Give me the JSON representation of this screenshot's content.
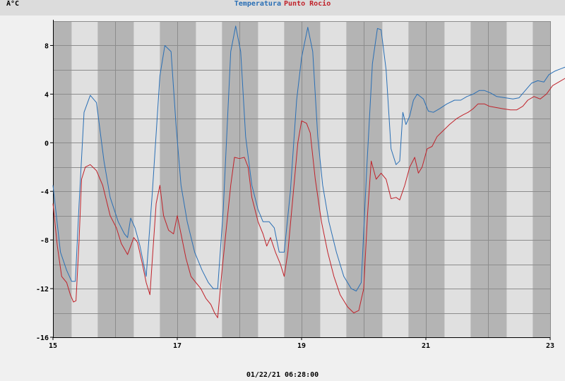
{
  "unit_label": "Â°C",
  "legend": [
    {
      "label": "Temperatura",
      "color": "#2a6fb5"
    },
    {
      "label": "Punto Rocio",
      "color": "#c0222a"
    }
  ],
  "timestamp": "01/22/21 06:28:00",
  "colors": {
    "plot_bg": "#e0e0e0",
    "night_band": "#b4b4b4",
    "grid": "#8c8c8c"
  },
  "chart_data": {
    "type": "line",
    "title": "",
    "xlabel": "",
    "ylabel": "Â°C",
    "xlim": [
      15,
      23
    ],
    "ylim": [
      -16,
      10
    ],
    "x_ticks": [
      15,
      17,
      19,
      21,
      23
    ],
    "y_ticks": [
      -16,
      -12,
      -8,
      -4,
      0,
      4,
      8
    ],
    "grid": true,
    "night_bands": [
      [
        15.0,
        15.3
      ],
      [
        15.72,
        16.3
      ],
      [
        16.72,
        17.3
      ],
      [
        17.72,
        18.3
      ],
      [
        18.72,
        19.3
      ],
      [
        19.72,
        20.3
      ],
      [
        20.72,
        21.3
      ],
      [
        21.72,
        22.3
      ],
      [
        22.72,
        23.0
      ]
    ],
    "series": [
      {
        "name": "Temperatura",
        "color": "#2a6fb5",
        "points": [
          [
            15.0,
            -3.5
          ],
          [
            15.12,
            -9.0
          ],
          [
            15.22,
            -10.5
          ],
          [
            15.3,
            -11.4
          ],
          [
            15.36,
            -11.4
          ],
          [
            15.42,
            -5.0
          ],
          [
            15.5,
            2.5
          ],
          [
            15.6,
            3.9
          ],
          [
            15.7,
            3.3
          ],
          [
            15.82,
            -1.5
          ],
          [
            15.92,
            -4.5
          ],
          [
            16.05,
            -6.5
          ],
          [
            16.15,
            -7.5
          ],
          [
            16.2,
            -7.8
          ],
          [
            16.25,
            -6.2
          ],
          [
            16.32,
            -7.0
          ],
          [
            16.4,
            -8.5
          ],
          [
            16.5,
            -11.0
          ],
          [
            16.6,
            -4.0
          ],
          [
            16.72,
            5.5
          ],
          [
            16.8,
            8.0
          ],
          [
            16.9,
            7.5
          ],
          [
            16.98,
            1.5
          ],
          [
            17.06,
            -3.5
          ],
          [
            17.16,
            -6.5
          ],
          [
            17.28,
            -9.0
          ],
          [
            17.4,
            -10.5
          ],
          [
            17.5,
            -11.5
          ],
          [
            17.58,
            -12.0
          ],
          [
            17.65,
            -12.0
          ],
          [
            17.74,
            -5.5
          ],
          [
            17.86,
            7.5
          ],
          [
            17.94,
            9.6
          ],
          [
            18.02,
            7.5
          ],
          [
            18.1,
            0.5
          ],
          [
            18.2,
            -3.5
          ],
          [
            18.3,
            -5.5
          ],
          [
            18.38,
            -6.5
          ],
          [
            18.48,
            -6.5
          ],
          [
            18.56,
            -7.0
          ],
          [
            18.64,
            -9.0
          ],
          [
            18.72,
            -9.0
          ],
          [
            18.82,
            -4.0
          ],
          [
            18.92,
            3.5
          ],
          [
            19.0,
            7.0
          ],
          [
            19.1,
            9.5
          ],
          [
            19.18,
            7.5
          ],
          [
            19.26,
            0.5
          ],
          [
            19.34,
            -3.5
          ],
          [
            19.44,
            -6.5
          ],
          [
            19.56,
            -9.0
          ],
          [
            19.68,
            -11.0
          ],
          [
            19.8,
            -12.0
          ],
          [
            19.88,
            -12.2
          ],
          [
            19.96,
            -11.5
          ],
          [
            20.05,
            -2.0
          ],
          [
            20.14,
            6.5
          ],
          [
            20.22,
            9.4
          ],
          [
            20.28,
            9.3
          ],
          [
            20.36,
            6.0
          ],
          [
            20.44,
            -0.5
          ],
          [
            20.52,
            -1.8
          ],
          [
            20.58,
            -1.5
          ],
          [
            20.63,
            2.5
          ],
          [
            20.68,
            1.5
          ],
          [
            20.74,
            2.2
          ],
          [
            20.8,
            3.5
          ],
          [
            20.86,
            4.0
          ],
          [
            20.96,
            3.6
          ],
          [
            21.04,
            2.6
          ],
          [
            21.12,
            2.5
          ],
          [
            21.22,
            2.8
          ],
          [
            21.34,
            3.2
          ],
          [
            21.46,
            3.5
          ],
          [
            21.56,
            3.5
          ],
          [
            21.66,
            3.8
          ],
          [
            21.76,
            4.0
          ],
          [
            21.86,
            4.3
          ],
          [
            21.94,
            4.3
          ],
          [
            22.04,
            4.1
          ],
          [
            22.14,
            3.8
          ],
          [
            22.28,
            3.7
          ],
          [
            22.4,
            3.6
          ],
          [
            22.5,
            3.7
          ],
          [
            22.6,
            4.3
          ],
          [
            22.7,
            4.9
          ],
          [
            22.8,
            5.1
          ],
          [
            22.9,
            5.0
          ],
          [
            22.98,
            5.6
          ],
          [
            23.08,
            5.9
          ],
          [
            23.18,
            6.1
          ],
          [
            23.28,
            6.3
          ],
          [
            23.38,
            6.6
          ],
          [
            23.46,
            6.8
          ],
          [
            23.52,
            7.0
          ],
          [
            23.58,
            6.8
          ],
          [
            23.64,
            6.0
          ]
        ]
      },
      {
        "name": "Punto Rocio",
        "color": "#c0222a",
        "points": [
          [
            15.0,
            -5.0
          ],
          [
            15.07,
            -8.5
          ],
          [
            15.14,
            -11.0
          ],
          [
            15.22,
            -11.5
          ],
          [
            15.28,
            -12.5
          ],
          [
            15.33,
            -13.1
          ],
          [
            15.37,
            -13.0
          ],
          [
            15.42,
            -8.0
          ],
          [
            15.46,
            -3.0
          ],
          [
            15.52,
            -2.0
          ],
          [
            15.6,
            -1.8
          ],
          [
            15.7,
            -2.3
          ],
          [
            15.8,
            -3.5
          ],
          [
            15.92,
            -6.0
          ],
          [
            16.02,
            -7.0
          ],
          [
            16.1,
            -8.3
          ],
          [
            16.2,
            -9.2
          ],
          [
            16.25,
            -8.5
          ],
          [
            16.3,
            -7.8
          ],
          [
            16.36,
            -8.2
          ],
          [
            16.44,
            -10.0
          ],
          [
            16.5,
            -11.5
          ],
          [
            16.56,
            -12.5
          ],
          [
            16.6,
            -9.5
          ],
          [
            16.66,
            -5.0
          ],
          [
            16.72,
            -3.5
          ],
          [
            16.78,
            -6.0
          ],
          [
            16.86,
            -7.2
          ],
          [
            16.94,
            -7.5
          ],
          [
            17.0,
            -6.0
          ],
          [
            17.06,
            -7.5
          ],
          [
            17.14,
            -9.5
          ],
          [
            17.22,
            -11.0
          ],
          [
            17.3,
            -11.5
          ],
          [
            17.38,
            -12.0
          ],
          [
            17.46,
            -12.8
          ],
          [
            17.54,
            -13.3
          ],
          [
            17.6,
            -14.0
          ],
          [
            17.65,
            -14.4
          ],
          [
            17.72,
            -10.5
          ],
          [
            17.8,
            -6.5
          ],
          [
            17.86,
            -3.5
          ],
          [
            17.92,
            -1.2
          ],
          [
            18.0,
            -1.3
          ],
          [
            18.08,
            -1.2
          ],
          [
            18.14,
            -2.0
          ],
          [
            18.2,
            -4.5
          ],
          [
            18.3,
            -6.5
          ],
          [
            18.38,
            -7.5
          ],
          [
            18.44,
            -8.5
          ],
          [
            18.5,
            -7.8
          ],
          [
            18.58,
            -9.0
          ],
          [
            18.66,
            -10.0
          ],
          [
            18.72,
            -11.0
          ],
          [
            18.78,
            -9.0
          ],
          [
            18.86,
            -4.5
          ],
          [
            18.94,
            0.0
          ],
          [
            19.0,
            1.8
          ],
          [
            19.08,
            1.6
          ],
          [
            19.14,
            0.8
          ],
          [
            19.22,
            -3.0
          ],
          [
            19.32,
            -6.5
          ],
          [
            19.42,
            -9.0
          ],
          [
            19.52,
            -11.0
          ],
          [
            19.62,
            -12.5
          ],
          [
            19.74,
            -13.5
          ],
          [
            19.84,
            -14.0
          ],
          [
            19.92,
            -13.8
          ],
          [
            20.0,
            -12.0
          ],
          [
            20.06,
            -6.0
          ],
          [
            20.12,
            -1.5
          ],
          [
            20.2,
            -3.0
          ],
          [
            20.28,
            -2.5
          ],
          [
            20.36,
            -3.0
          ],
          [
            20.44,
            -4.6
          ],
          [
            20.52,
            -4.5
          ],
          [
            20.58,
            -4.7
          ],
          [
            20.66,
            -3.5
          ],
          [
            20.74,
            -2.0
          ],
          [
            20.82,
            -1.2
          ],
          [
            20.88,
            -2.5
          ],
          [
            20.94,
            -2.0
          ],
          [
            21.02,
            -0.5
          ],
          [
            21.1,
            -0.3
          ],
          [
            21.18,
            0.5
          ],
          [
            21.28,
            1.0
          ],
          [
            21.38,
            1.5
          ],
          [
            21.5,
            2.0
          ],
          [
            21.6,
            2.3
          ],
          [
            21.68,
            2.5
          ],
          [
            21.76,
            2.8
          ],
          [
            21.84,
            3.2
          ],
          [
            21.94,
            3.2
          ],
          [
            22.02,
            3.0
          ],
          [
            22.12,
            2.9
          ],
          [
            22.24,
            2.8
          ],
          [
            22.36,
            2.7
          ],
          [
            22.46,
            2.7
          ],
          [
            22.56,
            3.0
          ],
          [
            22.64,
            3.5
          ],
          [
            22.74,
            3.8
          ],
          [
            22.84,
            3.6
          ],
          [
            22.94,
            4.0
          ],
          [
            23.04,
            4.7
          ],
          [
            23.14,
            5.0
          ],
          [
            23.24,
            5.3
          ],
          [
            23.34,
            5.4
          ],
          [
            23.4,
            6.0
          ],
          [
            23.46,
            5.8
          ],
          [
            23.52,
            5.9
          ],
          [
            23.58,
            5.6
          ],
          [
            23.63,
            3.8
          ]
        ]
      }
    ]
  }
}
